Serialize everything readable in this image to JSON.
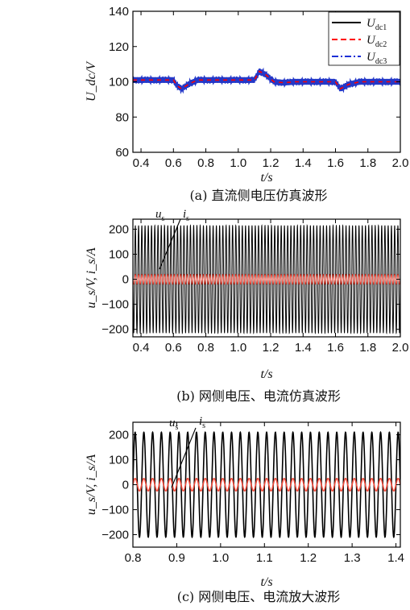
{
  "chart_data": [
    {
      "id": "a",
      "type": "line",
      "caption": "(a) 直流侧电压仿真波形",
      "xlabel": "t/s",
      "ylabel": "U_dc/V",
      "xlim": [
        0.35,
        2.0
      ],
      "ylim": [
        60,
        140
      ],
      "xticks": [
        "0.4",
        "0.6",
        "0.8",
        "1.0",
        "1.2",
        "1.4",
        "1.6",
        "1.8",
        "2.0"
      ],
      "xtick_values": [
        0.4,
        0.6,
        0.8,
        1.0,
        1.2,
        1.4,
        1.6,
        1.8,
        2.0
      ],
      "yticks": [
        "60",
        "80",
        "100",
        "120",
        "140"
      ],
      "ytick_values": [
        60,
        80,
        100,
        120,
        140
      ],
      "legend_position": "top-right",
      "series": [
        {
          "name": "U_dc1",
          "label_main": "U",
          "label_sub": "dc1",
          "color": "#000000",
          "style": "solid",
          "x": [
            0.35,
            0.6,
            0.62,
            0.65,
            0.7,
            0.75,
            0.8,
            1.1,
            1.13,
            1.17,
            1.22,
            1.28,
            1.35,
            1.6,
            1.63,
            1.68,
            1.75,
            1.85,
            2.0
          ],
          "y": [
            101,
            101,
            98,
            96,
            99,
            101,
            101,
            101,
            106,
            104,
            100,
            99.5,
            100,
            100,
            96,
            98.5,
            100,
            100,
            100
          ]
        },
        {
          "name": "U_dc2",
          "label_main": "U",
          "label_sub": "dc2",
          "color": "#ff0000",
          "style": "dashed",
          "x": [
            0.35,
            0.6,
            0.62,
            0.65,
            0.7,
            0.75,
            0.8,
            1.1,
            1.13,
            1.17,
            1.22,
            1.28,
            1.35,
            1.6,
            1.63,
            1.68,
            1.75,
            1.85,
            2.0
          ],
          "y": [
            101,
            101,
            98,
            96,
            99,
            101,
            101,
            101,
            106,
            104,
            100,
            99.5,
            100,
            100,
            96,
            98.5,
            100,
            100,
            100
          ]
        },
        {
          "name": "U_dc3",
          "label_main": "U",
          "label_sub": "dc3",
          "color": "#1c2fd6",
          "style": "dashdot",
          "x": [
            0.35,
            0.6,
            0.62,
            0.65,
            0.7,
            0.75,
            0.8,
            1.1,
            1.13,
            1.17,
            1.22,
            1.28,
            1.35,
            1.6,
            1.63,
            1.68,
            1.75,
            1.85,
            2.0
          ],
          "y": [
            101,
            101,
            98,
            96,
            99,
            101,
            101,
            101,
            106,
            104,
            100,
            99.5,
            100,
            100,
            96,
            98.5,
            100,
            100,
            100
          ]
        }
      ]
    },
    {
      "id": "b",
      "type": "line",
      "caption": "(b) 网侧电压、电流仿真波形",
      "xlabel": "t/s",
      "ylabel": "u_s/V, i_s/A",
      "xlim": [
        0.35,
        2.0
      ],
      "ylim": [
        -230,
        240
      ],
      "xticks": [
        "0.4",
        "0.6",
        "0.8",
        "1.0",
        "1.2",
        "1.4",
        "1.6",
        "1.8",
        "2.0"
      ],
      "xtick_values": [
        0.4,
        0.6,
        0.8,
        1.0,
        1.2,
        1.4,
        1.6,
        1.8,
        2.0
      ],
      "yticks": [
        "200",
        "100",
        "0",
        "−100",
        "−200"
      ],
      "ytick_values": [
        200,
        100,
        0,
        -100,
        -200
      ],
      "annotations": [
        {
          "main": "u",
          "sub": "s"
        },
        {
          "main": "i",
          "sub": "s"
        }
      ],
      "series": [
        {
          "name": "u_s",
          "color": "#000000",
          "waveform": "sine",
          "amplitude": 215,
          "frequency_hz": 50,
          "offset": 0
        },
        {
          "name": "i_s",
          "color": "#f04a3a",
          "waveform": "sine",
          "amplitude": 20,
          "frequency_hz": 50,
          "offset": 0
        }
      ]
    },
    {
      "id": "c",
      "type": "line",
      "caption": "(c) 网侧电压、电流放大波形",
      "xlabel": "t/s",
      "ylabel": "u_s/V, i_s/A",
      "xlim": [
        0.8,
        1.41
      ],
      "ylim": [
        -250,
        250
      ],
      "xticks": [
        "0.8",
        "0.9",
        "1.0",
        "1.1",
        "1.2",
        "1.3",
        "1.4"
      ],
      "xtick_values": [
        0.8,
        0.9,
        1.0,
        1.1,
        1.2,
        1.3,
        1.4
      ],
      "yticks": [
        "200",
        "100",
        "0",
        "−100",
        "−200"
      ],
      "ytick_values": [
        200,
        100,
        0,
        -100,
        -200
      ],
      "annotations": [
        {
          "main": "u",
          "sub": "s"
        },
        {
          "main": "i",
          "sub": "s"
        }
      ],
      "series": [
        {
          "name": "u_s",
          "color": "#000000",
          "waveform": "sine",
          "amplitude": 210,
          "frequency_hz": 50,
          "offset": 0
        },
        {
          "name": "i_s",
          "color": "#f04a3a",
          "waveform": "sine",
          "amplitude": 25,
          "frequency_hz": 50,
          "offset": 0
        }
      ]
    }
  ]
}
